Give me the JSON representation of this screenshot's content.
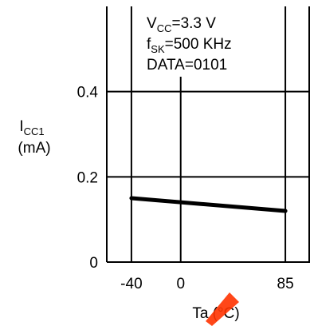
{
  "chart_data": {
    "type": "line",
    "title": "",
    "conditions": {
      "vcc": {
        "main": "V",
        "sub": "CC",
        "rest": "=3.3 V"
      },
      "fsk": {
        "main": "f",
        "sub": "SK",
        "rest": "=500 KHz"
      },
      "data": "DATA=0101"
    },
    "ylabel": {
      "main": "I",
      "sub": "CC1",
      "unit": "(mA)"
    },
    "xlabel": {
      "prefix": "Ta (",
      "unit": "°C",
      "suffix": ")"
    },
    "xlim": [
      -60,
      105
    ],
    "ylim": [
      0,
      0.6
    ],
    "xticks": [
      {
        "value": -40,
        "label": "-40"
      },
      {
        "value": 0,
        "label": "0"
      },
      {
        "value": 85,
        "label": "85"
      }
    ],
    "yticks": [
      {
        "value": 0,
        "label": "0"
      },
      {
        "value": 0.2,
        "label": "0.2"
      },
      {
        "value": 0.4,
        "label": "0.4"
      }
    ],
    "grid": true,
    "series": [
      {
        "x": [
          -40,
          85
        ],
        "y": [
          0.15,
          0.12
        ],
        "color": "#000000"
      }
    ]
  },
  "watermark_color": "#ff3300"
}
